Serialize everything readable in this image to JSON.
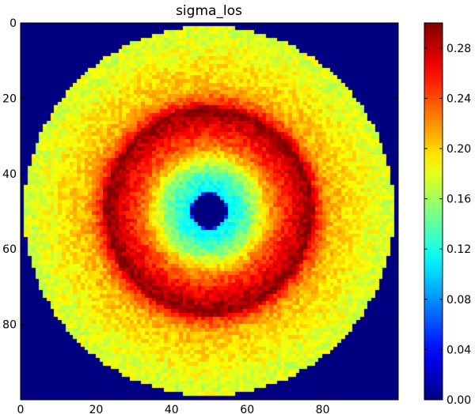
{
  "chart_data": {
    "type": "heatmap",
    "title": "sigma_los",
    "xlabel": "",
    "ylabel": "",
    "colormap": "jet",
    "grid_size": [
      100,
      100
    ],
    "xlim": [
      0,
      100
    ],
    "ylim": [
      100,
      0
    ],
    "xticks": [
      0,
      20,
      40,
      60,
      80
    ],
    "yticks": [
      0,
      20,
      40,
      60,
      80
    ],
    "colorbar": {
      "range": [
        0.0,
        0.3
      ],
      "ticks": [
        0.0,
        0.04,
        0.08,
        0.12,
        0.16,
        0.2,
        0.24,
        0.28
      ],
      "tick_labels": [
        "0.00",
        "0.04",
        "0.08",
        "0.12",
        "0.16",
        "0.20",
        "0.24",
        "0.28"
      ]
    },
    "center": [
      49.5,
      49.5
    ],
    "background_value": 0.0,
    "radial_profile": [
      {
        "r": 0,
        "value": 0.0
      },
      {
        "r": 4.5,
        "value": 0.0
      },
      {
        "r": 5.0,
        "value": 0.11
      },
      {
        "r": 8.0,
        "value": 0.125
      },
      {
        "r": 10.0,
        "value": 0.14
      },
      {
        "r": 12.0,
        "value": 0.16
      },
      {
        "r": 15.0,
        "value": 0.2
      },
      {
        "r": 18.0,
        "value": 0.235
      },
      {
        "r": 22.0,
        "value": 0.265
      },
      {
        "r": 24.5,
        "value": 0.282
      },
      {
        "r": 27.0,
        "value": 0.3
      },
      {
        "r": 28.5,
        "value": 0.255
      },
      {
        "r": 32.0,
        "value": 0.21
      },
      {
        "r": 40.0,
        "value": 0.19
      },
      {
        "r": 47.0,
        "value": 0.175
      },
      {
        "r": 49.0,
        "value": 0.18
      }
    ],
    "outer_radius": 49.0
  }
}
